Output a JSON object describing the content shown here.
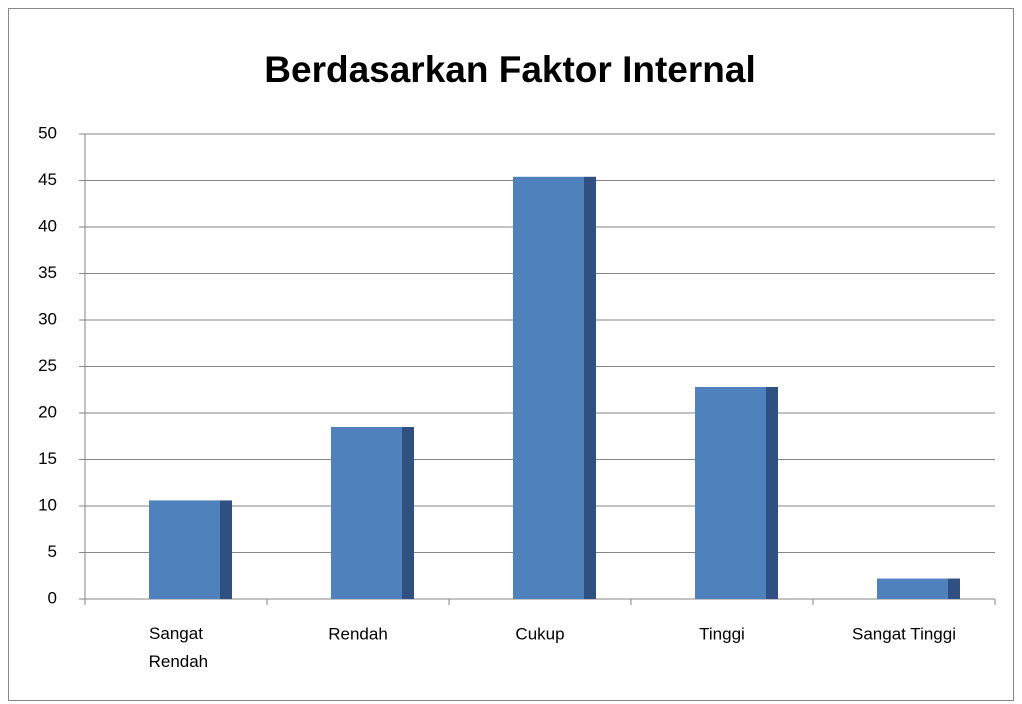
{
  "chart_data": {
    "type": "bar",
    "title": "Berdasarkan Faktor Internal",
    "categories": [
      "Sangat Rendah",
      "Rendah",
      "Cukup",
      "Tinggi",
      "Sangat Tinggi"
    ],
    "values": [
      10.6,
      18.5,
      45.4,
      22.8,
      2.2
    ],
    "color": "#4f81bd",
    "ylim": [
      0,
      50
    ],
    "yticks": [
      0,
      5,
      10,
      15,
      20,
      25,
      30,
      35,
      40,
      45,
      50
    ],
    "grid": true
  }
}
